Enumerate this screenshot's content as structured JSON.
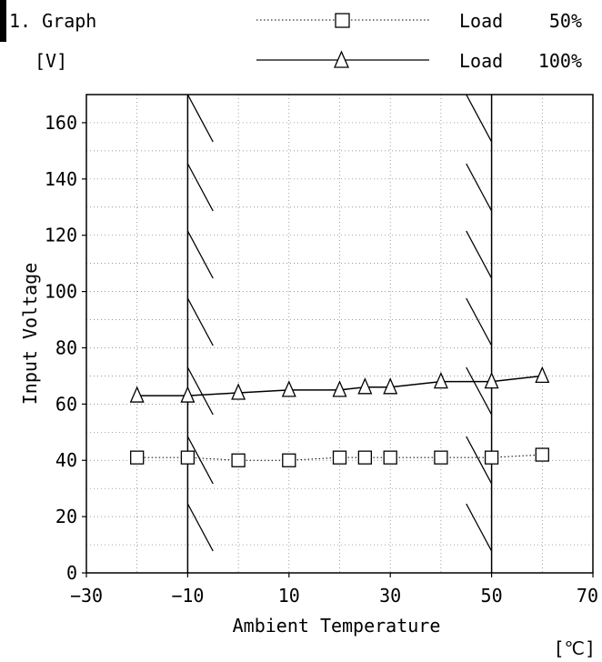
{
  "header": {
    "title": "1. Graph",
    "unit": "[V]"
  },
  "chart_data": {
    "type": "line",
    "xlabel": "Ambient Temperature",
    "xunit": "[℃]",
    "ylabel": "Input Voltage",
    "xlim": [
      -30,
      70
    ],
    "ylim": [
      0,
      170
    ],
    "xticks": [
      -30,
      -10,
      10,
      30,
      50,
      70
    ],
    "yticks": [
      0,
      20,
      40,
      60,
      80,
      100,
      120,
      140,
      160
    ],
    "xtick_labels": [
      "−30",
      "−10",
      "10",
      "30",
      "50",
      "70"
    ],
    "ytick_labels": [
      "0",
      "20",
      "40",
      "60",
      "80",
      "100",
      "120",
      "140",
      "160"
    ],
    "grid": true,
    "legend_position": "top-right",
    "shaded_regions": [
      {
        "x_start": -10,
        "x_end": -5,
        "pattern": "hatched"
      },
      {
        "x_start": 45,
        "x_end": 50,
        "pattern": "hatched"
      }
    ],
    "series": [
      {
        "name": "Load 50%",
        "marker": "square",
        "line_style": "dotted",
        "x": [
          -20,
          -10,
          0,
          10,
          20,
          25,
          30,
          40,
          50,
          60
        ],
        "y": [
          41,
          41,
          40,
          40,
          41,
          41,
          41,
          41,
          41,
          42
        ]
      },
      {
        "name": "Load 100%",
        "marker": "triangle",
        "line_style": "solid",
        "x": [
          -20,
          -10,
          0,
          10,
          20,
          25,
          30,
          40,
          50,
          60
        ],
        "y": [
          63,
          63,
          64,
          65,
          65,
          66,
          66,
          68,
          68,
          70
        ]
      }
    ],
    "legend": [
      {
        "label": "Load",
        "value": "50%"
      },
      {
        "label": "Load",
        "value": "100%"
      }
    ]
  }
}
